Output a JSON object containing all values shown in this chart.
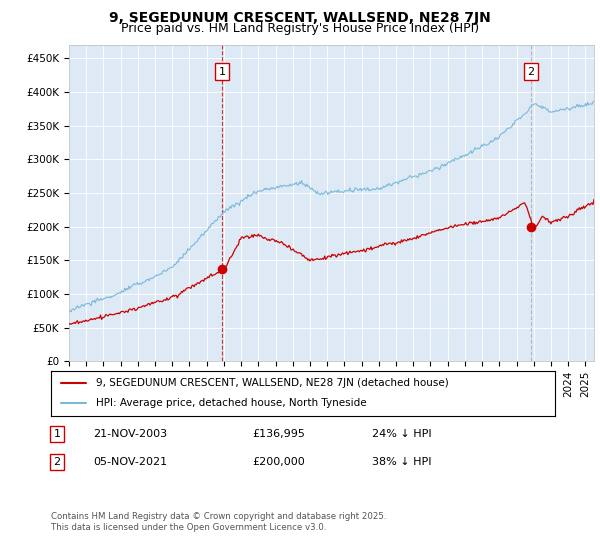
{
  "title": "9, SEGEDUNUM CRESCENT, WALLSEND, NE28 7JN",
  "subtitle": "Price paid vs. HM Land Registry's House Price Index (HPI)",
  "ylabel_ticks": [
    "£0",
    "£50K",
    "£100K",
    "£150K",
    "£200K",
    "£250K",
    "£300K",
    "£350K",
    "£400K",
    "£450K"
  ],
  "ylim": [
    0,
    470000
  ],
  "yticks": [
    0,
    50000,
    100000,
    150000,
    200000,
    250000,
    300000,
    350000,
    400000,
    450000
  ],
  "hpi_color": "#7ab8d9",
  "price_color": "#cc0000",
  "vline1_color": "#cc0000",
  "vline2_color": "#aaaaaa",
  "background_color": "#ddeaf5",
  "legend_label_red": "9, SEGEDUNUM CRESCENT, WALLSEND, NE28 7JN (detached house)",
  "legend_label_blue": "HPI: Average price, detached house, North Tyneside",
  "annotation1_date": "21-NOV-2003",
  "annotation1_price": "£136,995",
  "annotation1_pct": "24% ↓ HPI",
  "annotation2_date": "05-NOV-2021",
  "annotation2_price": "£200,000",
  "annotation2_pct": "38% ↓ HPI",
  "footer": "Contains HM Land Registry data © Crown copyright and database right 2025.\nThis data is licensed under the Open Government Licence v3.0.",
  "title_fontsize": 10,
  "subtitle_fontsize": 9,
  "tick_fontsize": 7.5,
  "vline1_x": 2003.9,
  "vline2_x": 2021.85,
  "marker1_price": 136995,
  "marker2_price": 200000,
  "xmin": 1995,
  "xmax": 2025.5
}
